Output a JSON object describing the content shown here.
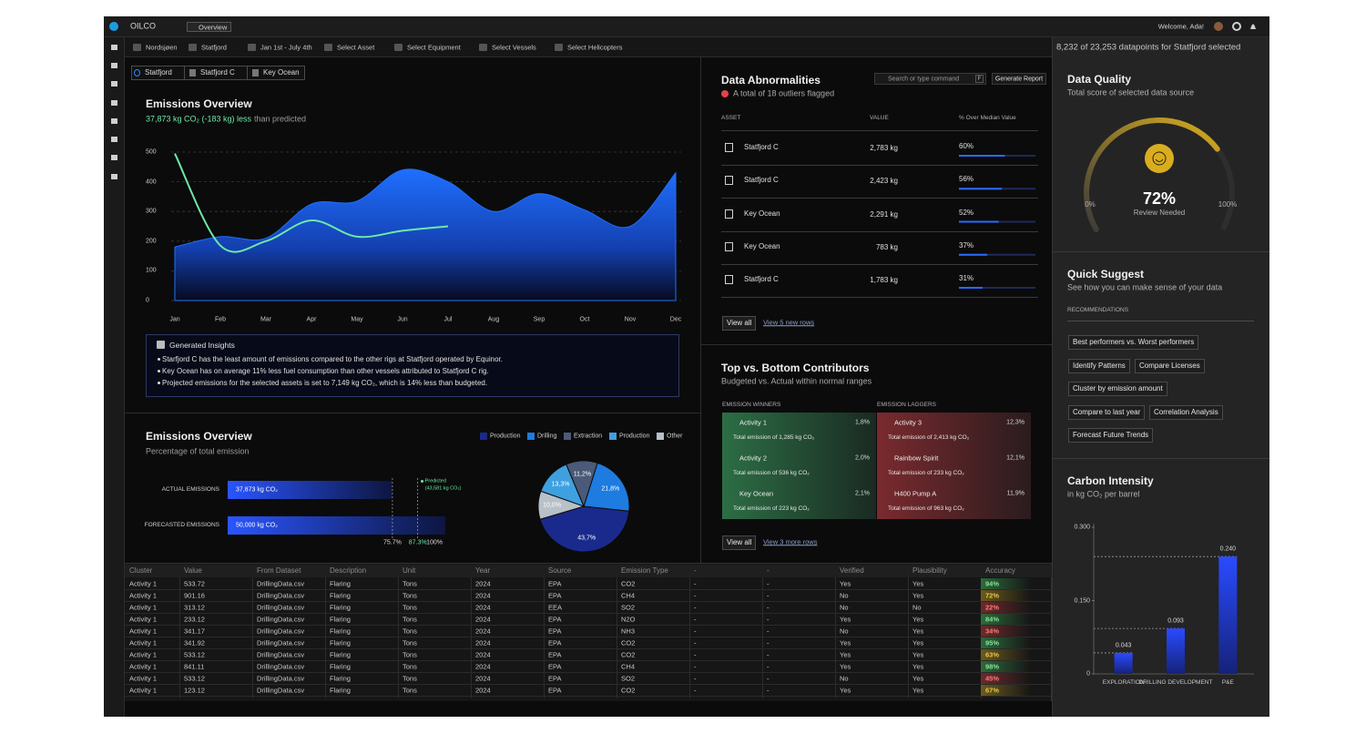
{
  "topbar": {
    "brand": "OILCO",
    "tab": "Overview",
    "welcome": "Welcome, Ada!"
  },
  "filters": [
    "Nordsjøen",
    "Statfjord",
    "Jan 1st - July 4th",
    "Select Asset",
    "Select Equipment",
    "Select Vessels",
    "Select Helicopters"
  ],
  "selection_info": "8,232 of 23,253 datapoints for Statfjord selected",
  "breadcrumb": [
    "Statfjord",
    "Statfjord C",
    "Key Ocean"
  ],
  "emissions_trend": {
    "type": "area",
    "title": "Emissions Overview",
    "highlight": "37,873 kg CO₂ (-183 kg) less",
    "subtitle": "than predicted",
    "categories": [
      "Jan",
      "Feb",
      "Mar",
      "Apr",
      "May",
      "Jun",
      "Jul",
      "Aug",
      "Sep",
      "Oct",
      "Nov",
      "Dec"
    ],
    "series": [
      {
        "type": "area",
        "color": "#1f6fff",
        "values": [
          180,
          215,
          210,
          325,
          335,
          440,
          400,
          300,
          360,
          305,
          250,
          430
        ]
      },
      {
        "type": "line",
        "color": "#6ee7a8",
        "values": [
          495,
          185,
          200,
          270,
          215,
          235,
          250,
          null,
          null,
          null,
          null,
          null
        ]
      }
    ],
    "ylim": [
      0,
      500
    ],
    "yticks": [
      0,
      100,
      200,
      300,
      400,
      500
    ],
    "grid": true
  },
  "insights": {
    "title": "Generated Insights",
    "items": [
      "Starfjord C has the least amount of emissions compared to the other rigs at Statfjord operated by Equinor.",
      "Key Ocean has on average 11% less fuel consumption than other vessels attributed to Statfjord C rig.",
      "Projected emissions for the selected assets is set to 7,149 kg CO₂, which is 14% less than budgeted."
    ]
  },
  "abnormalities": {
    "title": "Data Abnormalities",
    "subtitle": "A total of 18 outliers flagged",
    "search": "Search or type command",
    "shortcut": "F",
    "action": "Generate Report",
    "columns": [
      "ASSET",
      "VALUE",
      "% Over Median Value"
    ],
    "rows": [
      {
        "asset": "Statfjord C",
        "value": "2,783 kg",
        "share": 60,
        "share_label": "60%"
      },
      {
        "asset": "Statfjord C",
        "value": "2,423 kg",
        "share": 56,
        "share_label": "56%"
      },
      {
        "asset": "Key Ocean",
        "value": "2,291 kg",
        "share": 52,
        "share_label": "52%"
      },
      {
        "asset": "Key Ocean",
        "value": "783 kg",
        "share": 37,
        "share_label": "37%"
      },
      {
        "asset": "Statfjord C",
        "value": "1,783 kg",
        "share": 31,
        "share_label": "31%"
      }
    ],
    "view_all": "View all",
    "more": "View 5 new rows"
  },
  "contributors": {
    "title": "Top vs. Bottom Contributors",
    "subtitle": "Budgeted vs. Actual within normal ranges",
    "winners_label": "EMISSION WINNERS",
    "laggers_label": "EMISSION LAGGERS",
    "winners": [
      {
        "name": "Activity 1",
        "share": "1,8%",
        "detail": "Total emission of 1,285 kg CO₂"
      },
      {
        "name": "Activity 2",
        "share": "2,0%",
        "detail": "Total emission of 536 kg CO₂"
      },
      {
        "name": "Key Ocean",
        "share": "2,1%",
        "detail": "Total emission of 223 kg CO₂"
      }
    ],
    "laggers": [
      {
        "name": "Activity 3",
        "share": "12,3%",
        "detail": "Total emission of 2,413 kg CO₂"
      },
      {
        "name": "Rainbow Spirit",
        "share": "12,1%",
        "detail": "Total emission of 233 kg CO₂"
      },
      {
        "name": "H400 Pump A",
        "share": "11,9%",
        "detail": "Total emission of 963 kg CO₂"
      }
    ],
    "view_all": "View all",
    "more": "View 3 more rows"
  },
  "emission_share": {
    "title": "Emissions Overview",
    "subtitle": "Percentage of total emission",
    "bars": {
      "type": "bar",
      "categories": [
        "ACTUAL EMISSIONS",
        "FORECASTED EMISSIONS"
      ],
      "values": [
        75.7,
        100
      ],
      "amounts": [
        "37,873 kg CO₂",
        "50,000 kg CO₂"
      ],
      "xlim": [
        0,
        100
      ],
      "xticks": [
        {
          "value": 75.7,
          "label": "75.7%"
        },
        {
          "value": 87.3,
          "label": "87.3%"
        },
        {
          "value": 100,
          "label": "100%"
        }
      ],
      "predicted": {
        "label": "Predicted",
        "amount": "(43,581 kg CO₂)"
      }
    },
    "pie": {
      "type": "pie",
      "categories": [
        "Production",
        "Drilling",
        "Extraction",
        "Production",
        "Other"
      ],
      "colors": [
        "#1a2a8c",
        "#1e7be0",
        "#4a5a78",
        "#3fa0e0",
        "#b8c0c8"
      ],
      "values": [
        43.7,
        21.8,
        11.2,
        13.3,
        10.0
      ],
      "value_labels": [
        "43,7%",
        "21,8%",
        "11,2%",
        "13,3%",
        "10,0%"
      ]
    }
  },
  "data_table": {
    "columns": [
      "Cluster",
      "Value",
      "From Dataset",
      "Description",
      "Unit",
      "Year",
      "Source",
      "Emission Type",
      "-",
      "-",
      "Verified",
      "Plausibility",
      "Accuracy"
    ],
    "rows": [
      [
        "Activity 1",
        "533.72",
        "DrillingData.csv",
        "Flaring",
        "Tons",
        "2024",
        "EPA",
        "CO2",
        "-",
        "-",
        "Yes",
        "Yes",
        "94%"
      ],
      [
        "Activity 1",
        "901.16",
        "DrillingData.csv",
        "Flaring",
        "Tons",
        "2024",
        "EPA",
        "CH4",
        "-",
        "-",
        "No",
        "Yes",
        "72%"
      ],
      [
        "Activity 1",
        "313.12",
        "DrillingData.csv",
        "Flaring",
        "Tons",
        "2024",
        "EEA",
        "SO2",
        "-",
        "-",
        "No",
        "No",
        "22%"
      ],
      [
        "Activity 1",
        "233.12",
        "DrillingData.csv",
        "Flaring",
        "Tons",
        "2024",
        "EPA",
        "N2O",
        "-",
        "-",
        "Yes",
        "Yes",
        "84%"
      ],
      [
        "Activity 1",
        "341.17",
        "DrillingData.csv",
        "Flaring",
        "Tons",
        "2024",
        "EPA",
        "NH3",
        "-",
        "-",
        "No",
        "Yes",
        "34%"
      ],
      [
        "Activity 1",
        "341.92",
        "DrillingData.csv",
        "Flaring",
        "Tons",
        "2024",
        "EPA",
        "CO2",
        "-",
        "-",
        "Yes",
        "Yes",
        "95%"
      ],
      [
        "Activity 1",
        "533.12",
        "DrillingData.csv",
        "Flaring",
        "Tons",
        "2024",
        "EPA",
        "CO2",
        "-",
        "-",
        "Yes",
        "Yes",
        "63%"
      ],
      [
        "Activity 1",
        "841.11",
        "DrillingData.csv",
        "Flaring",
        "Tons",
        "2024",
        "EPA",
        "CH4",
        "-",
        "-",
        "Yes",
        "Yes",
        "98%"
      ],
      [
        "Activity 1",
        "533.12",
        "DrillingData.csv",
        "Flaring",
        "Tons",
        "2024",
        "EPA",
        "SO2",
        "-",
        "-",
        "No",
        "Yes",
        "45%"
      ],
      [
        "Activity 1",
        "123.12",
        "DrillingData.csv",
        "Flaring",
        "Tons",
        "2024",
        "EPA",
        "CO2",
        "-",
        "-",
        "Yes",
        "Yes",
        "67%"
      ]
    ]
  },
  "data_quality": {
    "type": "gauge",
    "title": "Data Quality",
    "subtitle": "Total score of selected data source",
    "value": 72,
    "value_label": "72%",
    "range": [
      0,
      100
    ],
    "range_labels": [
      "0%",
      "100%"
    ],
    "caption": "Review Needed",
    "color": "#d9ad1f"
  },
  "quick_suggest": {
    "title": "Quick Suggest",
    "subtitle": "See how you can make sense of your data",
    "section": "RECOMMENDATIONS",
    "items": [
      "Best performers vs. Worst performers",
      "Identify Patterns",
      "Compare Licenses",
      "Cluster by emission amount",
      "Compare to last year",
      "Correlation Analysis",
      "Forecast Future Trends"
    ]
  },
  "carbon_intensity": {
    "type": "bar",
    "title": "Carbon Intensity",
    "subtitle": "in kg CO₂ per barrel",
    "categories": [
      "EXPLORATION",
      "DRILLING DEVELOPMENT",
      "P&E"
    ],
    "values": [
      0.043,
      0.093,
      0.24
    ],
    "value_labels": [
      "0.043",
      "0.093",
      "0.240"
    ],
    "ylim": [
      0,
      0.3
    ],
    "yticks": [
      0,
      {
        "value": 0.15,
        "label": "0.150"
      },
      {
        "value": 0.3,
        "label": "0.300"
      }
    ],
    "color": "#2a4bff"
  }
}
